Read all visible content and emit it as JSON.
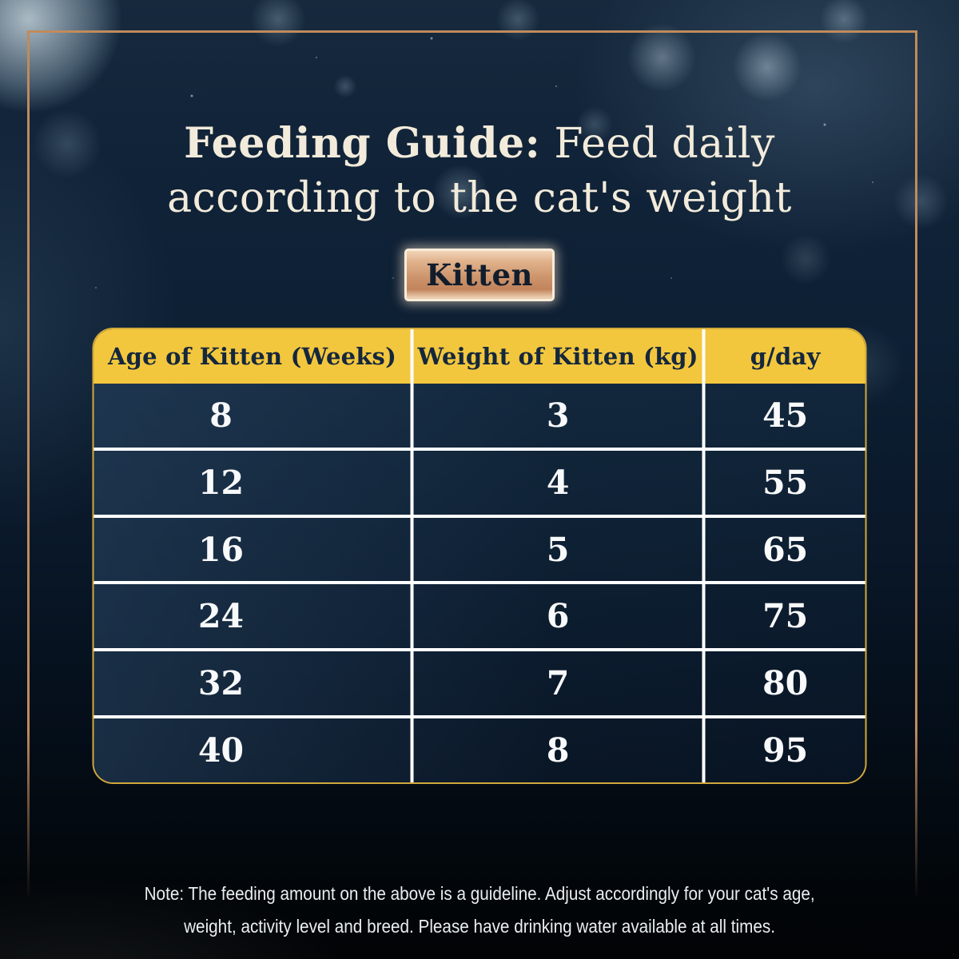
{
  "header": {
    "title_bold": "Feeding Guide:",
    "title_rest": " Feed daily",
    "title_line2": "according to the cat's weight",
    "badge_label": "Kitten"
  },
  "chart_data": {
    "type": "table",
    "title": "Feeding Guide: Feed daily according to the cat's weight",
    "group_label": "Kitten",
    "columns": [
      "Age of Kitten (Weeks)",
      "Weight of Kitten (kg)",
      "g/day"
    ],
    "rows": [
      [
        8,
        3,
        45
      ],
      [
        12,
        4,
        55
      ],
      [
        16,
        5,
        65
      ],
      [
        24,
        6,
        75
      ],
      [
        32,
        7,
        80
      ],
      [
        40,
        8,
        95
      ]
    ]
  },
  "footer": {
    "note_line1": "Note: The feeding amount on the above is a guideline. Adjust accordingly for your cat's age,",
    "note_line2": "weight, activity level and breed. Please have drinking water available at all times."
  },
  "colors": {
    "accent_yellow": "#F3C73D",
    "table_border_gold": "#D1A83C",
    "frame_copper": "#C08B5C",
    "header_text_navy": "#14273D",
    "divider_white": "#FFFFFF",
    "title_cream": "#F2EBDB",
    "badge_copper": "#CE976F",
    "cell_text_white": "#F8F9FA",
    "note_white": "#E9EEF2"
  }
}
